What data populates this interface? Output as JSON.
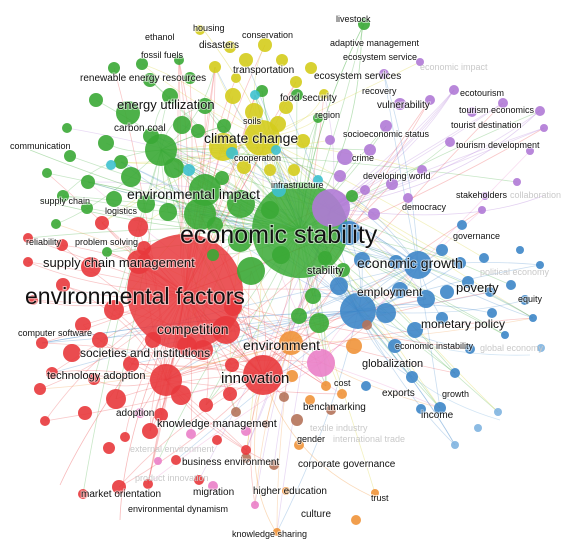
{
  "network": {
    "colors": {
      "red": "#e8383c",
      "green": "#3aa935",
      "yellow": "#d4cc1c",
      "blue": "#3d86c8",
      "purple": "#b07ad6",
      "cyan": "#3ec1cf",
      "orange": "#f0943a",
      "pink": "#ea80c8",
      "brown": "#b5735a",
      "ltblue": "#7fb4e0"
    },
    "labels": [
      {
        "text": "housing",
        "cluster": "yellow"
      },
      {
        "text": "livestock",
        "cluster": "green"
      },
      {
        "text": "ethanol",
        "cluster": "green"
      },
      {
        "text": "conservation",
        "cluster": "yellow"
      },
      {
        "text": "disasters",
        "cluster": "yellow"
      },
      {
        "text": "adaptive management",
        "cluster": "purple"
      },
      {
        "text": "fossil fuels",
        "cluster": "green"
      },
      {
        "text": "ecosystem service",
        "cluster": "purple"
      },
      {
        "text": "economic impact",
        "cluster": "purple",
        "faint": true
      },
      {
        "text": "transportation",
        "cluster": "yellow"
      },
      {
        "text": "renewable energy resources",
        "cluster": "green"
      },
      {
        "text": "ecosystem services",
        "cluster": "purple"
      },
      {
        "text": "recovery",
        "cluster": "purple"
      },
      {
        "text": "ecotourism",
        "cluster": "purple"
      },
      {
        "text": "food security",
        "cluster": "yellow"
      },
      {
        "text": "energy utilization",
        "cluster": "green"
      },
      {
        "text": "vulnerability",
        "cluster": "purple"
      },
      {
        "text": "tourism economics",
        "cluster": "purple"
      },
      {
        "text": "region",
        "cluster": "yellow"
      },
      {
        "text": "soils",
        "cluster": "yellow"
      },
      {
        "text": "carbon coal",
        "cluster": "green"
      },
      {
        "text": "tourist destination",
        "cluster": "purple"
      },
      {
        "text": "socioeconomic status",
        "cluster": "purple"
      },
      {
        "text": "climate change",
        "cluster": "yellow"
      },
      {
        "text": "communication",
        "cluster": "green"
      },
      {
        "text": "tourism development",
        "cluster": "purple"
      },
      {
        "text": "cooperation",
        "cluster": "cyan"
      },
      {
        "text": "crime",
        "cluster": "purple"
      },
      {
        "text": "developing world",
        "cluster": "purple"
      },
      {
        "text": "infrastructure",
        "cluster": "cyan"
      },
      {
        "text": "environmental impact",
        "cluster": "green"
      },
      {
        "text": "stakeholders",
        "cluster": "purple"
      },
      {
        "text": "collaboration",
        "cluster": "purple",
        "faint": true
      },
      {
        "text": "supply chain",
        "cluster": "green"
      },
      {
        "text": "logistics",
        "cluster": "green"
      },
      {
        "text": "democracy",
        "cluster": "purple"
      },
      {
        "text": "economic stability",
        "cluster": "green"
      },
      {
        "text": "governance",
        "cluster": "blue"
      },
      {
        "text": "reliability",
        "cluster": "red"
      },
      {
        "text": "problem solving",
        "cluster": "red"
      },
      {
        "text": "supply chain management",
        "cluster": "red"
      },
      {
        "text": "economic growth",
        "cluster": "blue"
      },
      {
        "text": "political economy",
        "cluster": "blue",
        "faint": true
      },
      {
        "text": "stability",
        "cluster": "blue"
      },
      {
        "text": "poverty",
        "cluster": "blue"
      },
      {
        "text": "environmental factors",
        "cluster": "red"
      },
      {
        "text": "employment",
        "cluster": "blue"
      },
      {
        "text": "equity",
        "cluster": "blue"
      },
      {
        "text": "monetary policy",
        "cluster": "blue"
      },
      {
        "text": "competition",
        "cluster": "red"
      },
      {
        "text": "computer software",
        "cluster": "red"
      },
      {
        "text": "environment",
        "cluster": "orange"
      },
      {
        "text": "economic instability",
        "cluster": "blue"
      },
      {
        "text": "global economy",
        "cluster": "blue",
        "faint": true
      },
      {
        "text": "societies and institutions",
        "cluster": "red"
      },
      {
        "text": "globalization",
        "cluster": "blue"
      },
      {
        "text": "technology adoption",
        "cluster": "red"
      },
      {
        "text": "innovation",
        "cluster": "red"
      },
      {
        "text": "cost",
        "cluster": "orange"
      },
      {
        "text": "exports",
        "cluster": "blue"
      },
      {
        "text": "growth",
        "cluster": "blue"
      },
      {
        "text": "benchmarking",
        "cluster": "brown"
      },
      {
        "text": "adoption",
        "cluster": "red"
      },
      {
        "text": "income",
        "cluster": "blue"
      },
      {
        "text": "knowledge management",
        "cluster": "red"
      },
      {
        "text": "textile industry",
        "cluster": "brown",
        "faint": true
      },
      {
        "text": "gender",
        "cluster": "orange"
      },
      {
        "text": "international trade",
        "cluster": "blue",
        "faint": true
      },
      {
        "text": "external environment",
        "cluster": "red",
        "faint": true
      },
      {
        "text": "business environment",
        "cluster": "red"
      },
      {
        "text": "corporate governance",
        "cluster": "brown"
      },
      {
        "text": "product innovation",
        "cluster": "red",
        "faint": true
      },
      {
        "text": "migration",
        "cluster": "pink"
      },
      {
        "text": "higher education",
        "cluster": "orange"
      },
      {
        "text": "trust",
        "cluster": "orange"
      },
      {
        "text": "market orientation",
        "cluster": "red"
      },
      {
        "text": "environmental dynamism",
        "cluster": "red"
      },
      {
        "text": "culture",
        "cluster": "orange"
      },
      {
        "text": "knowledge sharing",
        "cluster": "orange"
      }
    ]
  }
}
